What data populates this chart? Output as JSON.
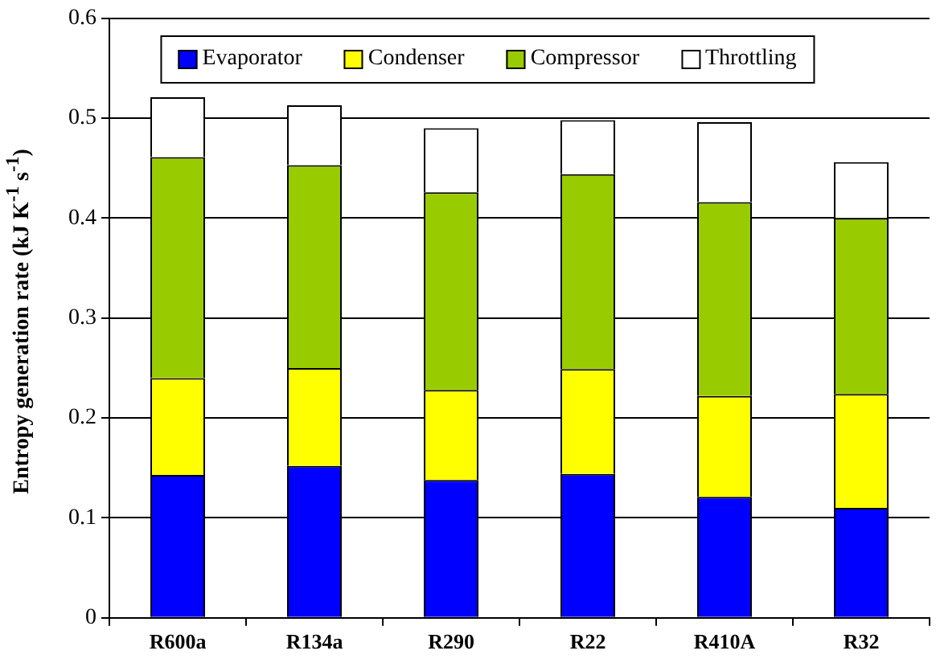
{
  "chart_data": {
    "type": "bar",
    "stacked": true,
    "ylabel": "Entropy generation rate (kJ K$^{-1}$ s$^{-1}$)",
    "categories": [
      "R600a",
      "R134a",
      "R290",
      "R22",
      "R410A",
      "R32"
    ],
    "series": [
      {
        "name": "Evaporator",
        "color": "#0000ff",
        "values": [
          0.143,
          0.152,
          0.138,
          0.144,
          0.121,
          0.11
        ]
      },
      {
        "name": "Condenser",
        "color": "#ffff00",
        "values": [
          0.097,
          0.098,
          0.09,
          0.105,
          0.101,
          0.114
        ]
      },
      {
        "name": "Compressor",
        "color": "#99cc00",
        "values": [
          0.221,
          0.203,
          0.198,
          0.195,
          0.194,
          0.176
        ]
      },
      {
        "name": "Throttling",
        "color": "#ffffff",
        "values": [
          0.06,
          0.06,
          0.064,
          0.054,
          0.08,
          0.056
        ]
      }
    ],
    "ylim": [
      0,
      0.6
    ],
    "yticks": [
      0,
      0.1,
      0.2,
      0.3,
      0.4,
      0.5,
      0.6
    ],
    "grid": "y",
    "legend": "top"
  }
}
